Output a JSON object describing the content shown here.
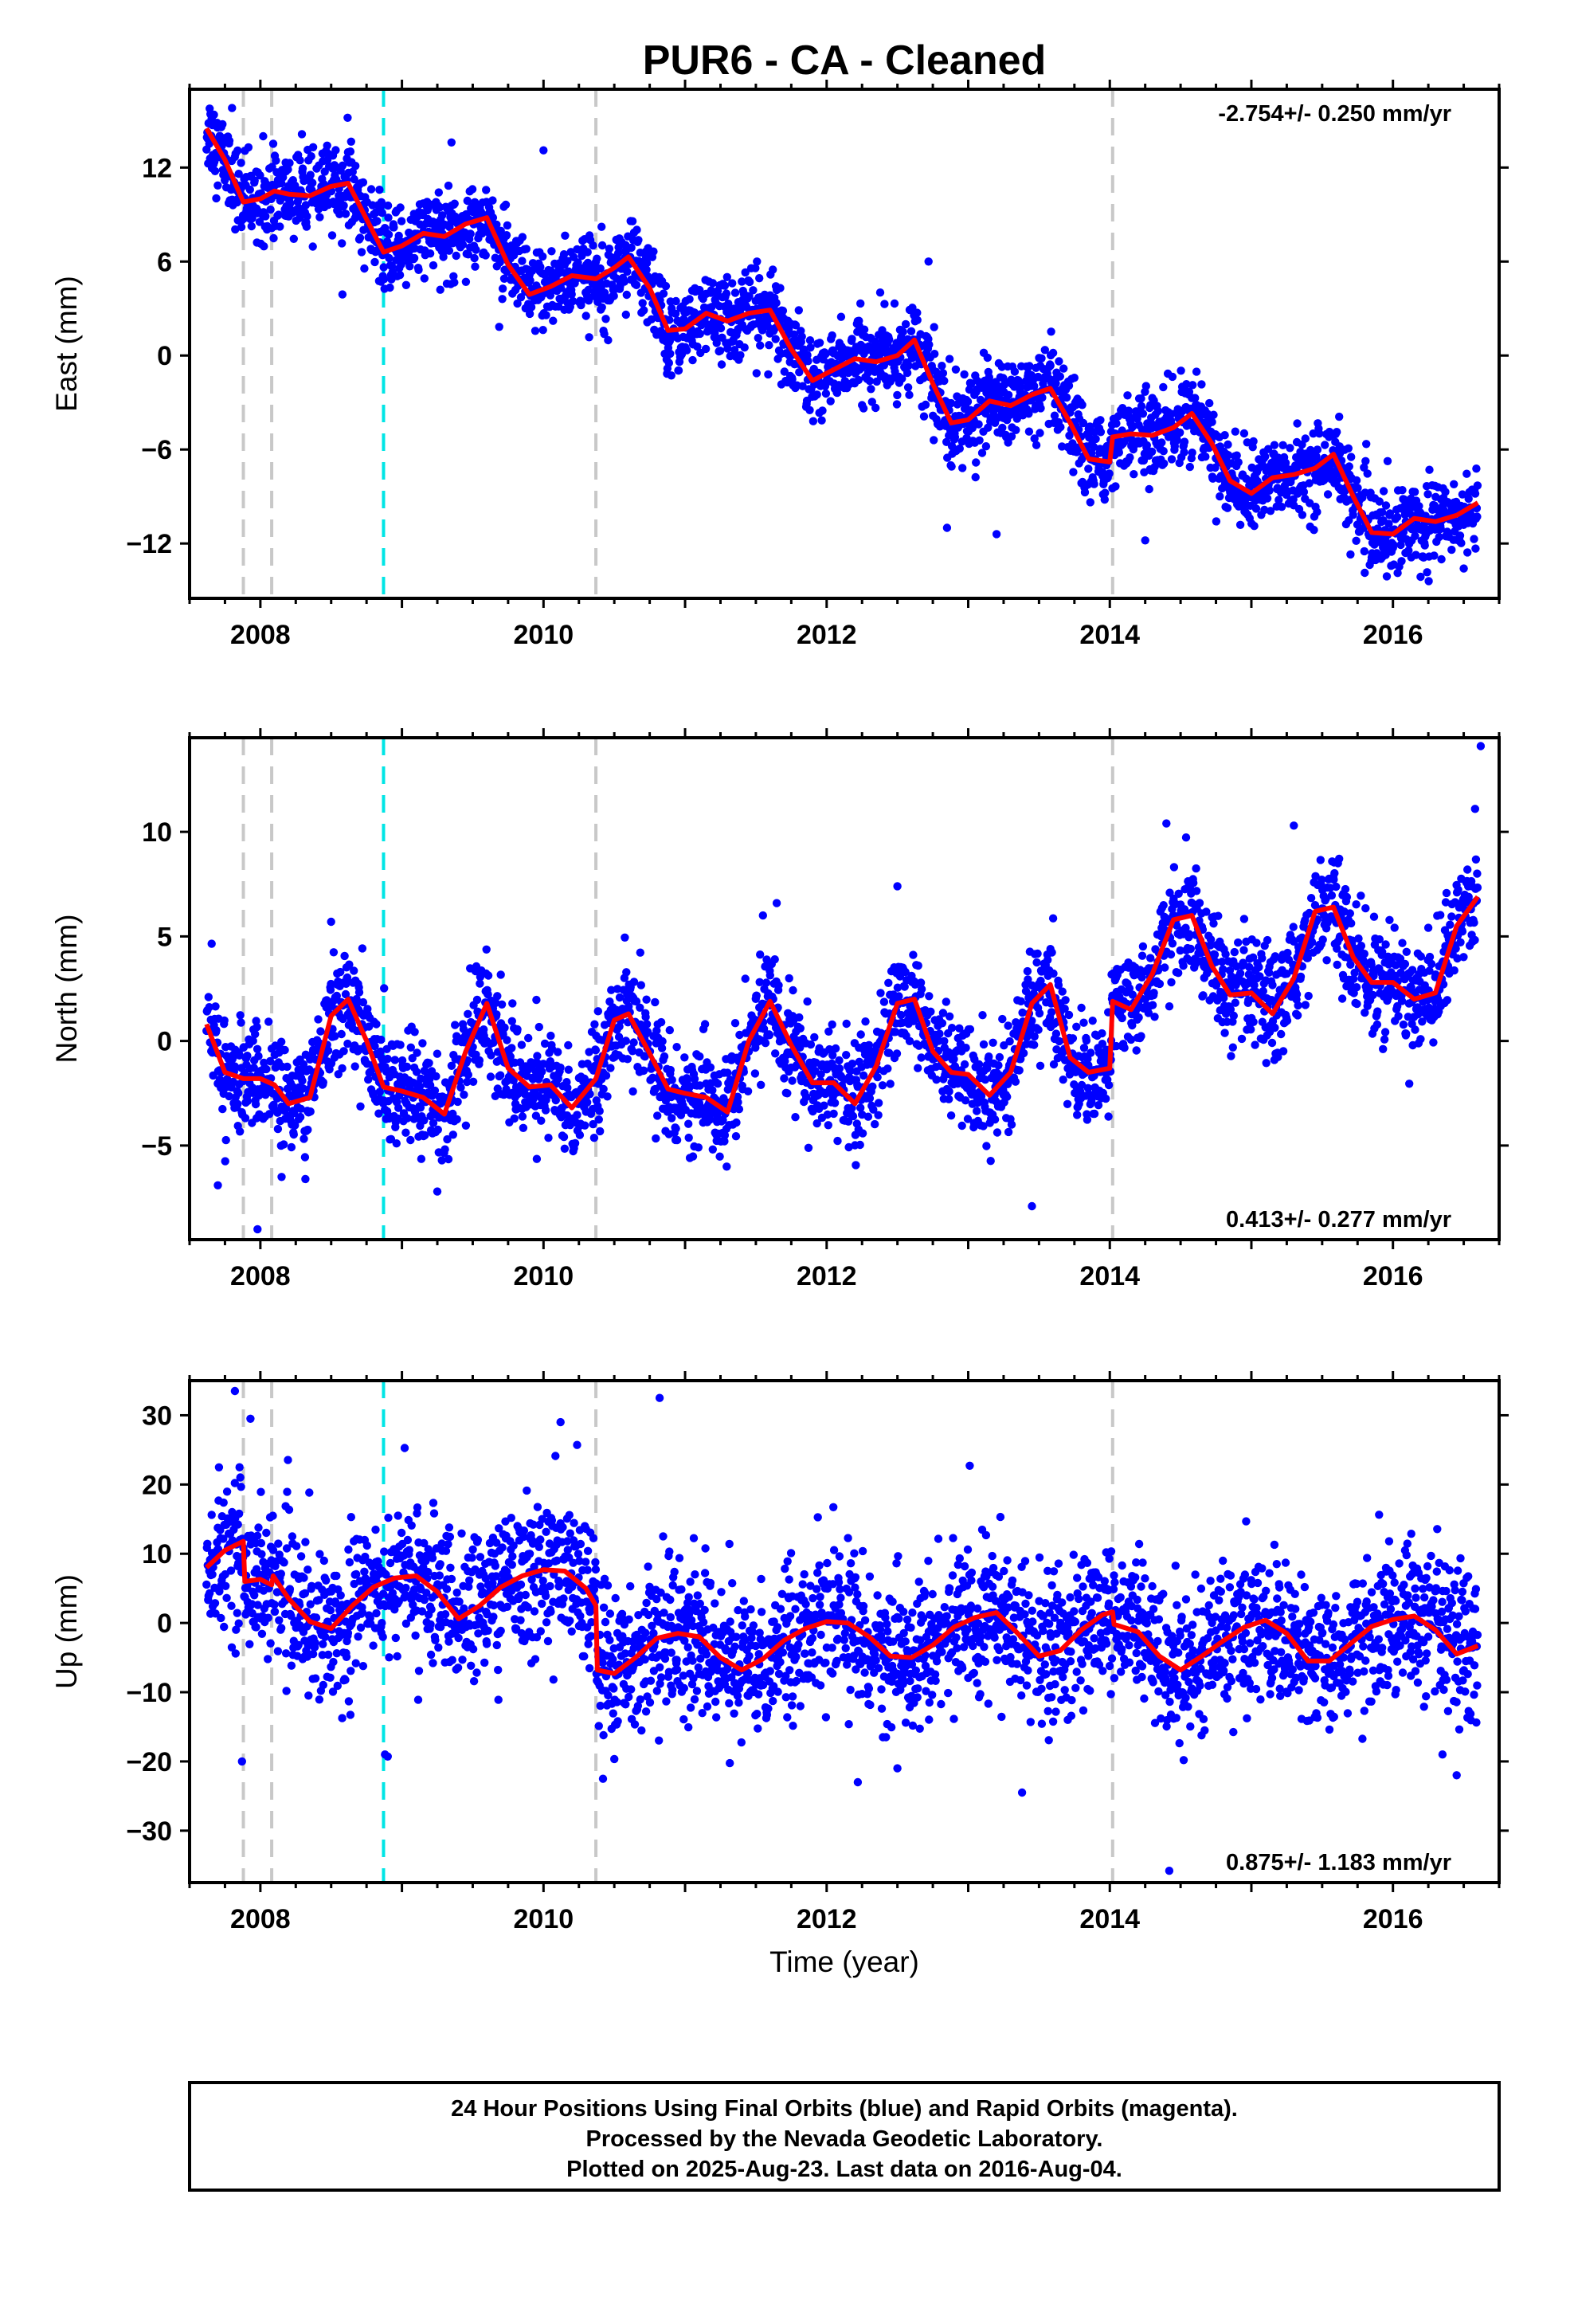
{
  "title": "PUR6  - CA - Cleaned",
  "colors": {
    "points": "#0000ff",
    "model": "#ff0000",
    "event_gray": "#c8c8c8",
    "event_cyan": "#00e5e5",
    "frame": "#000000"
  },
  "chart_data": [
    {
      "type": "scatter",
      "id": "east",
      "ylabel": "East (mm)",
      "xlim": [
        2007.5,
        2016.75
      ],
      "ylim": [
        -15.5,
        17
      ],
      "yticks": [
        -12,
        -6,
        0,
        6,
        12
      ],
      "ytick_labels": [
        "−12",
        "−6",
        "0",
        "6",
        "12"
      ],
      "xticks": [
        2008,
        2010,
        2012,
        2014,
        2016
      ],
      "xtick_labels": [
        "2008",
        "2010",
        "2012",
        "2014",
        "2016"
      ],
      "rate_text": "-2.754+/- 0.250 mm/yr",
      "rate_position": "top-right",
      "events_gray": [
        2007.88,
        2008.08,
        2010.37,
        2014.02
      ],
      "events_cyan": [
        2008.87
      ],
      "model_line": {
        "x": [
          2007.62,
          2007.75,
          2007.88,
          2008.0,
          2008.1,
          2008.2,
          2008.35,
          2008.5,
          2008.62,
          2008.75,
          2008.87,
          2009.0,
          2009.15,
          2009.3,
          2009.45,
          2009.6,
          2009.75,
          2009.9,
          2010.05,
          2010.2,
          2010.37,
          2010.5,
          2010.6,
          2010.75,
          2010.88,
          2011.0,
          2011.15,
          2011.3,
          2011.45,
          2011.6,
          2011.75,
          2011.9,
          2012.05,
          2012.2,
          2012.35,
          2012.5,
          2012.62,
          2012.75,
          2012.88,
          2013.0,
          2013.15,
          2013.3,
          2013.45,
          2013.58,
          2013.72,
          2013.85,
          2014.0,
          2014.02,
          2014.15,
          2014.3,
          2014.45,
          2014.58,
          2014.72,
          2014.85,
          2015.0,
          2015.15,
          2015.3,
          2015.45,
          2015.58,
          2015.72,
          2015.85,
          2016.0,
          2016.15,
          2016.3,
          2016.45,
          2016.6
        ],
        "y": [
          14.5,
          12.5,
          9.8,
          10.0,
          10.5,
          10.3,
          10.2,
          10.8,
          11.0,
          8.7,
          6.6,
          7.0,
          7.8,
          7.6,
          8.4,
          8.8,
          5.8,
          3.9,
          4.4,
          5.1,
          4.9,
          5.6,
          6.3,
          4.3,
          1.6,
          1.7,
          2.7,
          2.2,
          2.7,
          2.9,
          0.4,
          -1.6,
          -0.9,
          -0.2,
          -0.4,
          0.0,
          1.0,
          -1.8,
          -4.3,
          -4.1,
          -2.9,
          -3.2,
          -2.5,
          -2.1,
          -4.3,
          -6.6,
          -6.8,
          -5.2,
          -5.0,
          -5.1,
          -4.6,
          -3.7,
          -5.6,
          -8.0,
          -8.8,
          -7.8,
          -7.6,
          -7.2,
          -6.3,
          -9.0,
          -11.3,
          -11.4,
          -10.4,
          -10.6,
          -10.2,
          -9.4
        ]
      },
      "points_model": {
        "trend_rate": -2.754,
        "intercept_at_2012": -1.2,
        "seasonal_amplitude": 1.6,
        "scatter": 1.3,
        "offsets": [
          [
            2007.88,
            -1.5
          ]
        ],
        "outliers": [
          [
            2007.8,
            15.8
          ],
          [
            2008.02,
            14.0
          ],
          [
            2009.35,
            13.6
          ],
          [
            2010.0,
            13.1
          ],
          [
            2012.85,
            -11.0
          ],
          [
            2013.2,
            -11.4
          ],
          [
            2014.25,
            -11.8
          ],
          [
            2015.7,
            -12.7
          ],
          [
            2016.5,
            -13.6
          ],
          [
            2012.72,
            6.0
          ],
          [
            2008.58,
            3.9
          ]
        ]
      }
    },
    {
      "type": "scatter",
      "id": "north",
      "ylabel": "North (mm)",
      "xlim": [
        2007.5,
        2016.75
      ],
      "ylim": [
        -9.5,
        14.5
      ],
      "yticks": [
        -5,
        0,
        5,
        10
      ],
      "ytick_labels": [
        "−5",
        "0",
        "5",
        "10"
      ],
      "xticks": [
        2008,
        2010,
        2012,
        2014,
        2016
      ],
      "xtick_labels": [
        "2008",
        "2010",
        "2012",
        "2014",
        "2016"
      ],
      "rate_text": "0.413+/- 0.277 mm/yr",
      "rate_position": "bottom-right",
      "events_gray": [
        2007.88,
        2008.08,
        2010.37,
        2014.02
      ],
      "events_cyan": [
        2008.87
      ],
      "model_line": {
        "x": [
          2007.62,
          2007.75,
          2007.88,
          2008.0,
          2008.1,
          2008.2,
          2008.35,
          2008.5,
          2008.62,
          2008.75,
          2008.87,
          2009.0,
          2009.15,
          2009.3,
          2009.45,
          2009.6,
          2009.75,
          2009.9,
          2010.05,
          2010.2,
          2010.37,
          2010.5,
          2010.6,
          2010.75,
          2010.88,
          2011.0,
          2011.15,
          2011.3,
          2011.45,
          2011.6,
          2011.75,
          2011.9,
          2012.05,
          2012.2,
          2012.35,
          2012.5,
          2012.62,
          2012.75,
          2012.88,
          2013.0,
          2013.15,
          2013.3,
          2013.45,
          2013.58,
          2013.72,
          2013.85,
          2014.0,
          2014.02,
          2014.15,
          2014.3,
          2014.45,
          2014.58,
          2014.72,
          2014.85,
          2015.0,
          2015.15,
          2015.3,
          2015.45,
          2015.58,
          2015.72,
          2015.85,
          2016.0,
          2016.15,
          2016.3,
          2016.45,
          2016.6
        ],
        "y": [
          0.8,
          -1.5,
          -1.8,
          -1.8,
          -2.1,
          -3.0,
          -2.7,
          1.2,
          2.0,
          0.0,
          -2.2,
          -2.4,
          -2.7,
          -3.5,
          -0.5,
          1.8,
          -1.3,
          -2.2,
          -2.1,
          -3.2,
          -1.8,
          1.0,
          1.3,
          -0.6,
          -2.3,
          -2.5,
          -2.7,
          -3.4,
          0.0,
          1.9,
          -0.2,
          -2.0,
          -2.0,
          -3.0,
          -1.2,
          1.8,
          2.0,
          -0.5,
          -1.5,
          -1.6,
          -2.6,
          -1.5,
          1.8,
          2.7,
          -0.8,
          -1.5,
          -1.3,
          1.9,
          1.5,
          3.2,
          5.8,
          6.0,
          3.6,
          2.2,
          2.3,
          1.3,
          3.0,
          6.2,
          6.4,
          4.0,
          2.8,
          2.8,
          2.0,
          2.3,
          5.5,
          6.9
        ]
      },
      "points_model": {
        "trend_rate": 0.413,
        "intercept_at_2012": -0.5,
        "seasonal_amplitude": 2.3,
        "scatter": 1.25,
        "offsets": [
          [
            2014.02,
            2.8
          ]
        ],
        "outliers": [
          [
            2007.7,
            -6.9
          ],
          [
            2007.98,
            -9.0
          ],
          [
            2008.5,
            5.7
          ],
          [
            2012.5,
            7.4
          ],
          [
            2013.45,
            -7.9
          ],
          [
            2016.62,
            14.1
          ],
          [
            2016.58,
            11.1
          ],
          [
            2015.3,
            10.3
          ],
          [
            2014.4,
            10.4
          ],
          [
            2011.55,
            6.0
          ],
          [
            2009.25,
            -7.2
          ],
          [
            2008.15,
            -6.5
          ]
        ]
      }
    },
    {
      "type": "scatter",
      "id": "up",
      "ylabel": "Up (mm)",
      "xlabel": "Time (year)",
      "xlim": [
        2007.5,
        2016.75
      ],
      "ylim": [
        -37.5,
        35
      ],
      "yticks": [
        -30,
        -20,
        -10,
        0,
        10,
        20,
        30
      ],
      "ytick_labels": [
        "−30",
        "−20",
        "−10",
        "0",
        "10",
        "20",
        "30"
      ],
      "xticks": [
        2008,
        2010,
        2012,
        2014,
        2016
      ],
      "xtick_labels": [
        "2008",
        "2010",
        "2012",
        "2014",
        "2016"
      ],
      "rate_text": "0.875+/- 1.183 mm/yr",
      "rate_position": "bottom-right",
      "events_gray": [
        2007.88,
        2008.08,
        2010.37,
        2014.02
      ],
      "events_cyan": [
        2008.87
      ],
      "model_line": {
        "x": [
          2007.62,
          2007.75,
          2007.88,
          2007.89,
          2008.0,
          2008.08,
          2008.09,
          2008.2,
          2008.35,
          2008.5,
          2008.65,
          2008.8,
          2008.95,
          2009.1,
          2009.25,
          2009.4,
          2009.55,
          2009.7,
          2009.85,
          2010.0,
          2010.15,
          2010.3,
          2010.37,
          2010.38,
          2010.5,
          2010.65,
          2010.8,
          2010.95,
          2011.1,
          2011.25,
          2011.4,
          2011.55,
          2011.7,
          2011.85,
          2012.0,
          2012.15,
          2012.3,
          2012.45,
          2012.6,
          2012.75,
          2012.9,
          2013.05,
          2013.2,
          2013.35,
          2013.5,
          2013.65,
          2013.8,
          2013.95,
          2014.02,
          2014.03,
          2014.2,
          2014.35,
          2014.5,
          2014.65,
          2014.8,
          2014.95,
          2015.1,
          2015.25,
          2015.4,
          2015.55,
          2015.7,
          2015.85,
          2016.0,
          2016.15,
          2016.3,
          2016.45,
          2016.6
        ],
        "y": [
          8.0,
          10.5,
          11.8,
          6.0,
          6.3,
          5.5,
          6.8,
          3.5,
          0.2,
          -0.8,
          2.5,
          5.2,
          6.5,
          6.8,
          4.5,
          0.6,
          2.5,
          5.2,
          6.8,
          7.7,
          7.5,
          5.0,
          2.5,
          -6.8,
          -7.3,
          -5.0,
          -2.2,
          -1.5,
          -2.0,
          -5.0,
          -6.8,
          -5.2,
          -2.5,
          -0.8,
          0.2,
          0.0,
          -2.0,
          -4.8,
          -5.0,
          -3.2,
          -0.6,
          0.8,
          1.5,
          -1.5,
          -4.8,
          -4.0,
          -1.0,
          1.2,
          1.6,
          -0.2,
          -1.3,
          -4.8,
          -6.8,
          -4.8,
          -2.6,
          -0.6,
          0.4,
          -1.5,
          -5.5,
          -5.5,
          -3.0,
          -0.5,
          0.5,
          1.0,
          -1.0,
          -4.5,
          -3.3
        ]
      },
      "points_model": {
        "trend_rate": 0.875,
        "intercept_at_2012": -1.0,
        "seasonal_amplitude": 3.5,
        "scatter": 5.2,
        "offsets": [
          [
            2010.37,
            -9.0
          ]
        ],
        "outliers": [
          [
            2007.82,
            33.5
          ],
          [
            2007.93,
            29.5
          ],
          [
            2010.12,
            29.0
          ],
          [
            2010.82,
            32.5
          ],
          [
            2008.88,
            -19.0
          ],
          [
            2008.9,
            -19.3
          ],
          [
            2007.87,
            -20.0
          ],
          [
            2010.42,
            -22.5
          ],
          [
            2012.22,
            -23.0
          ],
          [
            2013.38,
            -24.5
          ],
          [
            2014.42,
            -35.8
          ],
          [
            2016.45,
            -22.0
          ],
          [
            2016.35,
            -19.0
          ],
          [
            2012.5,
            -21.0
          ]
        ]
      }
    }
  ],
  "footer": {
    "line1": "24 Hour Positions Using Final Orbits (blue) and Rapid Orbits (magenta).",
    "line2": "Processed by the Nevada Geodetic Laboratory.",
    "line3": "Plotted on 2025-Aug-23. Last data on 2016-Aug-04."
  }
}
